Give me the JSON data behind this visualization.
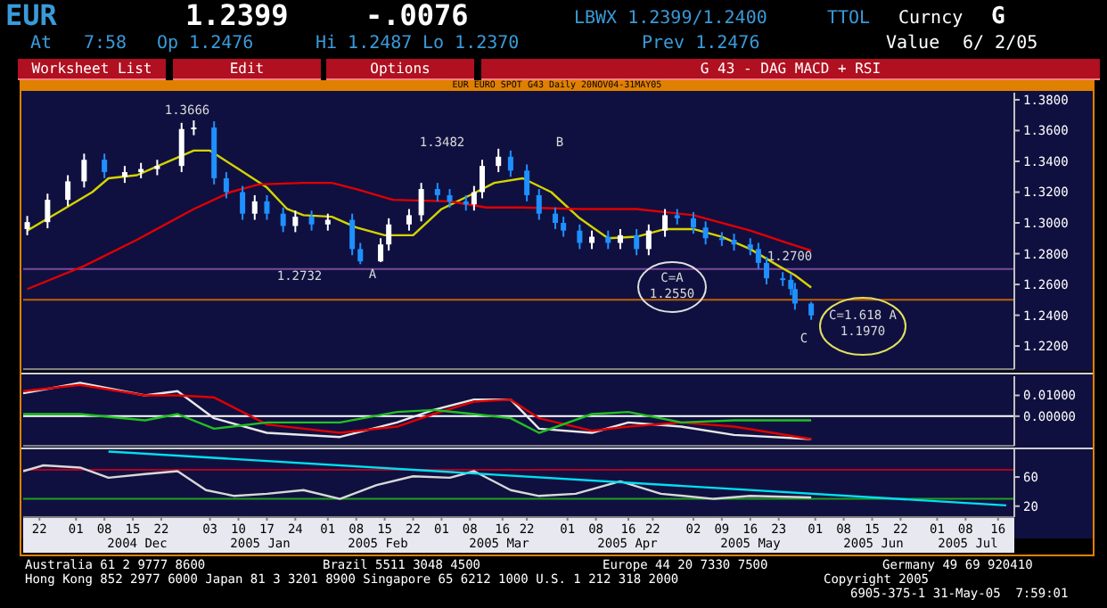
{
  "chart_data": [
    {
      "type": "candlestick",
      "title": "EUR EURO SPOT G43 Daily 20NOV04-31MAY05",
      "tick_labels": "y",
      "xlim": [
        "2004-11-18",
        "2005-07-20"
      ],
      "ylim": [
        1.205,
        1.3846
      ],
      "yticks": [
        {
          "value": 1.22,
          "label": "1.2200"
        },
        {
          "value": 1.24,
          "label": "1.2400"
        },
        {
          "value": 1.26,
          "label": "1.2600"
        },
        {
          "value": 1.28,
          "label": "1.2800"
        },
        {
          "value": 1.3,
          "label": "1.3000"
        },
        {
          "value": 1.32,
          "label": "1.3200"
        },
        {
          "value": 1.34,
          "label": "1.3400"
        },
        {
          "value": 1.36,
          "label": "1.3600"
        },
        {
          "value": 1.38,
          "label": "1.3800"
        }
      ],
      "x": [
        "2004-11-19",
        "2004-11-24",
        "2004-11-29",
        "2004-12-03",
        "2004-12-08",
        "2004-12-13",
        "2004-12-17",
        "2004-12-21",
        "2004-12-27",
        "2004-12-30",
        "2005-01-04",
        "2005-01-07",
        "2005-01-11",
        "2005-01-14",
        "2005-01-17",
        "2005-01-21",
        "2005-01-24",
        "2005-01-28",
        "2005-02-01",
        "2005-02-07",
        "2005-02-09",
        "2005-02-14",
        "2005-02-16",
        "2005-02-21",
        "2005-02-24",
        "2005-02-28",
        "2005-03-03",
        "2005-03-07",
        "2005-03-09",
        "2005-03-11",
        "2005-03-15",
        "2005-03-18",
        "2005-03-22",
        "2005-03-25",
        "2005-03-29",
        "2005-03-31",
        "2005-04-04",
        "2005-04-07",
        "2005-04-11",
        "2005-04-14",
        "2005-04-18",
        "2005-04-21",
        "2005-04-25",
        "2005-04-28",
        "2005-05-02",
        "2005-05-05",
        "2005-05-09",
        "2005-05-12",
        "2005-05-16",
        "2005-05-18",
        "2005-05-20",
        "2005-05-24",
        "2005-05-26",
        "2005-05-27",
        "2005-05-31"
      ],
      "ohlc": [
        [
          1.296,
          1.3045,
          1.292,
          1.3005
        ],
        [
          1.3005,
          1.319,
          1.2965,
          1.315
        ],
        [
          1.315,
          1.331,
          1.311,
          1.327
        ],
        [
          1.327,
          1.345,
          1.323,
          1.341
        ],
        [
          1.341,
          1.345,
          1.329,
          1.333
        ],
        [
          1.33,
          1.337,
          1.326,
          1.333
        ],
        [
          1.333,
          1.339,
          1.329,
          1.335
        ],
        [
          1.335,
          1.341,
          1.331,
          1.337
        ],
        [
          1.337,
          1.365,
          1.333,
          1.361
        ],
        [
          1.361,
          1.3666,
          1.357,
          1.362
        ],
        [
          1.362,
          1.366,
          1.325,
          1.329
        ],
        [
          1.329,
          1.333,
          1.316,
          1.32
        ],
        [
          1.32,
          1.324,
          1.302,
          1.306
        ],
        [
          1.306,
          1.318,
          1.302,
          1.314
        ],
        [
          1.314,
          1.318,
          1.302,
          1.306
        ],
        [
          1.306,
          1.31,
          1.294,
          1.298
        ],
        [
          1.298,
          1.308,
          1.294,
          1.304
        ],
        [
          1.304,
          1.308,
          1.295,
          1.299
        ],
        [
          1.299,
          1.306,
          1.295,
          1.302
        ],
        [
          1.302,
          1.306,
          1.279,
          1.283
        ],
        [
          1.283,
          1.287,
          1.2732,
          1.275
        ],
        [
          1.275,
          1.29,
          1.2745,
          1.286
        ],
        [
          1.286,
          1.303,
          1.282,
          1.299
        ],
        [
          1.299,
          1.309,
          1.295,
          1.305
        ],
        [
          1.305,
          1.326,
          1.301,
          1.322
        ],
        [
          1.322,
          1.326,
          1.314,
          1.318
        ],
        [
          1.318,
          1.322,
          1.31,
          1.314
        ],
        [
          1.314,
          1.318,
          1.308,
          1.312
        ],
        [
          1.312,
          1.324,
          1.308,
          1.32
        ],
        [
          1.32,
          1.341,
          1.316,
          1.337
        ],
        [
          1.337,
          1.3482,
          1.333,
          1.343
        ],
        [
          1.343,
          1.347,
          1.33,
          1.334
        ],
        [
          1.334,
          1.338,
          1.314,
          1.318
        ],
        [
          1.318,
          1.322,
          1.302,
          1.306
        ],
        [
          1.306,
          1.31,
          1.296,
          1.3
        ],
        [
          1.3,
          1.304,
          1.291,
          1.295
        ],
        [
          1.295,
          1.299,
          1.283,
          1.287
        ],
        [
          1.287,
          1.295,
          1.283,
          1.291
        ],
        [
          1.291,
          1.295,
          1.283,
          1.287
        ],
        [
          1.287,
          1.296,
          1.283,
          1.292
        ],
        [
          1.292,
          1.296,
          1.279,
          1.283
        ],
        [
          1.283,
          1.299,
          1.279,
          1.295
        ],
        [
          1.295,
          1.309,
          1.291,
          1.305
        ],
        [
          1.305,
          1.309,
          1.299,
          1.303
        ],
        [
          1.303,
          1.307,
          1.293,
          1.297
        ],
        [
          1.297,
          1.301,
          1.286,
          1.29
        ],
        [
          1.29,
          1.294,
          1.285,
          1.289
        ],
        [
          1.289,
          1.293,
          1.282,
          1.286
        ],
        [
          1.286,
          1.29,
          1.279,
          1.283
        ],
        [
          1.283,
          1.287,
          1.27,
          1.274
        ],
        [
          1.274,
          1.278,
          1.26,
          1.264
        ],
        [
          1.264,
          1.268,
          1.259,
          1.263
        ],
        [
          1.263,
          1.267,
          1.253,
          1.257
        ],
        [
          1.257,
          1.261,
          1.2436,
          1.2476
        ],
        [
          1.2476,
          1.2487,
          1.237,
          1.2399
        ]
      ],
      "colors": [
        "#ffffff",
        "#ffffff",
        "#ffffff",
        "#ffffff",
        "#1e90ff",
        "#ffffff",
        "#ffffff",
        "#ffffff",
        "#ffffff",
        "#ffffff",
        "#1e90ff",
        "#1e90ff",
        "#1e90ff",
        "#ffffff",
        "#1e90ff",
        "#1e90ff",
        "#ffffff",
        "#1e90ff",
        "#ffffff",
        "#1e90ff",
        "#1e90ff",
        "#ffffff",
        "#ffffff",
        "#ffffff",
        "#ffffff",
        "#1e90ff",
        "#1e90ff",
        "#1e90ff",
        "#ffffff",
        "#ffffff",
        "#ffffff",
        "#1e90ff",
        "#1e90ff",
        "#1e90ff",
        "#1e90ff",
        "#1e90ff",
        "#1e90ff",
        "#ffffff",
        "#1e90ff",
        "#ffffff",
        "#1e90ff",
        "#ffffff",
        "#ffffff",
        "#1e90ff",
        "#1e90ff",
        "#1e90ff",
        "#1e90ff",
        "#1e90ff",
        "#1e90ff",
        "#1e90ff",
        "#1e90ff",
        "#1e90ff",
        "#1e90ff",
        "#1e90ff",
        "#1e90ff"
      ],
      "series": [
        {
          "type": "line",
          "color": "#d4d400",
          "x": [
            "2004-11-19",
            "2004-11-28",
            "2004-12-05",
            "2004-12-09",
            "2004-12-16",
            "2004-12-23",
            "2004-12-30",
            "2005-01-03",
            "2005-01-10",
            "2005-01-17",
            "2005-01-22",
            "2005-01-26",
            "2005-02-02",
            "2005-02-08",
            "2005-02-15",
            "2005-02-22",
            "2005-03-01",
            "2005-03-08",
            "2005-03-14",
            "2005-03-21",
            "2005-03-28",
            "2005-04-04",
            "2005-04-11",
            "2005-04-18",
            "2005-04-25",
            "2005-05-02",
            "2005-05-09",
            "2005-05-16",
            "2005-05-23",
            "2005-05-27",
            "2005-05-31"
          ],
          "values": [
            1.295,
            1.309,
            1.32,
            1.329,
            1.331,
            1.339,
            1.347,
            1.347,
            1.335,
            1.323,
            1.309,
            1.305,
            1.304,
            1.297,
            1.292,
            1.292,
            1.309,
            1.318,
            1.326,
            1.329,
            1.32,
            1.303,
            1.29,
            1.291,
            1.296,
            1.296,
            1.291,
            1.283,
            1.272,
            1.266,
            1.258
          ]
        },
        {
          "type": "line",
          "color": "#e00000",
          "x": [
            "2004-11-19",
            "2004-12-03",
            "2004-12-16",
            "2004-12-30",
            "2005-01-08",
            "2005-01-15",
            "2005-01-26",
            "2005-02-02",
            "2005-02-08",
            "2005-02-17",
            "2005-03-03",
            "2005-03-12",
            "2005-03-21",
            "2005-04-04",
            "2005-04-18",
            "2005-05-02",
            "2005-05-16",
            "2005-05-25",
            "2005-05-31"
          ],
          "values": [
            1.257,
            1.272,
            1.289,
            1.309,
            1.32,
            1.325,
            1.326,
            1.326,
            1.322,
            1.315,
            1.314,
            1.31,
            1.31,
            1.309,
            1.309,
            1.305,
            1.295,
            1.287,
            1.282
          ]
        }
      ],
      "ref_lines": [
        {
          "axis": "y",
          "value": 1.27,
          "color": "#7a4a9a"
        },
        {
          "axis": "y",
          "value": 1.25,
          "color": "#c06000"
        }
      ],
      "annotations": [
        "EUR",
        "1.2399",
        "-.0076",
        "LBWX 1.2399/1.2400",
        "TTOL",
        "Curncy",
        "G",
        "At",
        "7:58",
        "Op 1.2476",
        "Hi 1.2487",
        "Lo 1.2370",
        "Prev 1.2476",
        "Value",
        "6/ 2/05",
        "Worksheet List",
        "Edit",
        "Options",
        "G 43 - DAG MACD + RSI",
        "Australia 61 2 9777 8600",
        "Brazil 5511 3048 4500",
        "Europe 44 20 7330 7500",
        "Germany 49 69 920410",
        "Hong Kong 852 2977 6000 Japan 81 3 3201 8900 Singapore 65 6212 1000 U.S. 1 212 318 2000",
        "Copyright 2005",
        "6905-375-1 31-May-05  7:59:01",
        "1.3666",
        "1.2732",
        "A",
        "1.3482",
        "B",
        "C=A",
        "1.2550",
        "1.2700",
        "C",
        "C=1.618 A",
        "1.1970"
      ]
    },
    {
      "type": "line",
      "tick_labels": "y",
      "xlim": [
        "2004-11-18",
        "2005-07-20"
      ],
      "ylim": [
        -0.0142,
        0.0192
      ],
      "yticks": [
        {
          "value": 0.01,
          "label": "0.01000"
        },
        {
          "value": 0,
          "label": "0.00000"
        }
      ],
      "ref_lines": [
        {
          "axis": "y",
          "value": 0,
          "color": "#ffffff"
        }
      ],
      "series": [
        {
          "color": "#e8e8e8",
          "x": [
            "2004-11-18",
            "2004-12-02",
            "2004-12-18",
            "2004-12-26",
            "2005-01-04",
            "2005-01-17",
            "2005-02-04",
            "2005-02-18",
            "2005-02-27",
            "2005-03-09",
            "2005-03-18",
            "2005-03-25",
            "2005-04-07",
            "2005-04-16",
            "2005-04-29",
            "2005-05-12",
            "2005-05-31"
          ],
          "values": [
            0.011,
            0.016,
            0.01,
            0.012,
            -0.001,
            -0.008,
            -0.01,
            -0.003,
            0.003,
            0.008,
            0.008,
            -0.006,
            -0.008,
            -0.003,
            -0.005,
            -0.009,
            -0.011
          ]
        },
        {
          "color": "#e00000",
          "x": [
            "2004-11-18",
            "2004-12-02",
            "2004-12-18",
            "2004-12-26",
            "2005-01-04",
            "2005-01-17",
            "2005-02-04",
            "2005-02-18",
            "2005-02-27",
            "2005-03-09",
            "2005-03-18",
            "2005-03-25",
            "2005-04-07",
            "2005-04-16",
            "2005-04-29",
            "2005-05-12",
            "2005-05-31"
          ],
          "values": [
            0.012,
            0.015,
            0.01,
            0.01,
            0.009,
            -0.004,
            -0.008,
            -0.005,
            0.001,
            0.007,
            0.008,
            -0.001,
            -0.007,
            -0.005,
            -0.003,
            -0.005,
            -0.011
          ]
        },
        {
          "color": "#20c020",
          "x": [
            "2004-11-18",
            "2004-12-02",
            "2004-12-18",
            "2004-12-26",
            "2005-01-04",
            "2005-01-17",
            "2005-02-04",
            "2005-02-18",
            "2005-02-27",
            "2005-03-09",
            "2005-03-18",
            "2005-03-25",
            "2005-04-07",
            "2005-04-16",
            "2005-04-29",
            "2005-05-12",
            "2005-05-31"
          ],
          "values": [
            0.001,
            0.001,
            -0.002,
            0.001,
            -0.006,
            -0.003,
            -0.003,
            0.002,
            0.003,
            0.001,
            -0.001,
            -0.008,
            0.001,
            0.002,
            -0.003,
            -0.002,
            -0.002
          ]
        }
      ]
    },
    {
      "type": "line",
      "xlim": [
        "2004-11-18",
        "2005-07-20"
      ],
      "ylim": [
        5,
        98
      ],
      "yticks": [
        60,
        20
      ],
      "xticks": [
        {
          "value": "2004-11-22",
          "label": "22"
        },
        {
          "value": "2004-12-01",
          "label": "01"
        },
        {
          "value": "2004-12-08",
          "label": "08"
        },
        {
          "value": "2004-12-15",
          "label": "15"
        },
        {
          "value": "2004-12-22",
          "label": "22"
        },
        {
          "value": "2005-01-03",
          "label": "03"
        },
        {
          "value": "2005-01-10",
          "label": "10"
        },
        {
          "value": "2005-01-17",
          "label": "17"
        },
        {
          "value": "2005-01-24",
          "label": "24"
        },
        {
          "value": "2005-02-01",
          "label": "01"
        },
        {
          "value": "2005-02-08",
          "label": "08"
        },
        {
          "value": "2005-02-15",
          "label": "15"
        },
        {
          "value": "2005-02-22",
          "label": "22"
        },
        {
          "value": "2005-03-01",
          "label": "01"
        },
        {
          "value": "2005-03-08",
          "label": "08"
        },
        {
          "value": "2005-03-16",
          "label": "16"
        },
        {
          "value": "2005-03-22",
          "label": "22"
        },
        {
          "value": "2005-04-01",
          "label": "01"
        },
        {
          "value": "2005-04-08",
          "label": "08"
        },
        {
          "value": "2005-04-16",
          "label": "16"
        },
        {
          "value": "2005-04-22",
          "label": "22"
        },
        {
          "value": "2005-05-02",
          "label": "02"
        },
        {
          "value": "2005-05-09",
          "label": "09"
        },
        {
          "value": "2005-05-16",
          "label": "16"
        },
        {
          "value": "2005-05-23",
          "label": "23"
        },
        {
          "value": "2005-06-01",
          "label": "01"
        },
        {
          "value": "2005-06-08",
          "label": "08"
        },
        {
          "value": "2005-06-15",
          "label": "15"
        },
        {
          "value": "2005-06-22",
          "label": "22"
        },
        {
          "value": "2005-07-01",
          "label": "01"
        },
        {
          "value": "2005-07-08",
          "label": "08"
        },
        {
          "value": "2005-07-16",
          "label": "16"
        }
      ],
      "ref_lines": [
        {
          "axis": "y",
          "value": 70,
          "color": "#b00020"
        },
        {
          "axis": "y",
          "value": 30,
          "color": "#20a020"
        }
      ],
      "series": [
        {
          "color": "#d8d8d8",
          "x": [
            "2004-11-18",
            "2004-11-23",
            "2004-12-02",
            "2004-12-09",
            "2004-12-18",
            "2004-12-26",
            "2005-01-02",
            "2005-01-09",
            "2005-01-17",
            "2005-01-26",
            "2005-02-04",
            "2005-02-13",
            "2005-02-22",
            "2005-03-03",
            "2005-03-09",
            "2005-03-18",
            "2005-03-25",
            "2005-04-03",
            "2005-04-14",
            "2005-04-24",
            "2005-05-07",
            "2005-05-16",
            "2005-05-31"
          ],
          "values": [
            68,
            76,
            73,
            59,
            64,
            68,
            42,
            34,
            37,
            42,
            30,
            49,
            61,
            59,
            68,
            42,
            34,
            37,
            54,
            37,
            30,
            34,
            32
          ]
        },
        {
          "color": "#00e0f0",
          "x": [
            "2004-12-09",
            "2005-07-18"
          ],
          "values": [
            95,
            21
          ]
        }
      ],
      "annotations": [
        "2004 Dec",
        "2005 Jan",
        "2005 Feb",
        "2005 Mar",
        "2005 Apr",
        "2005 May",
        "2005 Jun",
        "2005 Jul"
      ]
    }
  ]
}
